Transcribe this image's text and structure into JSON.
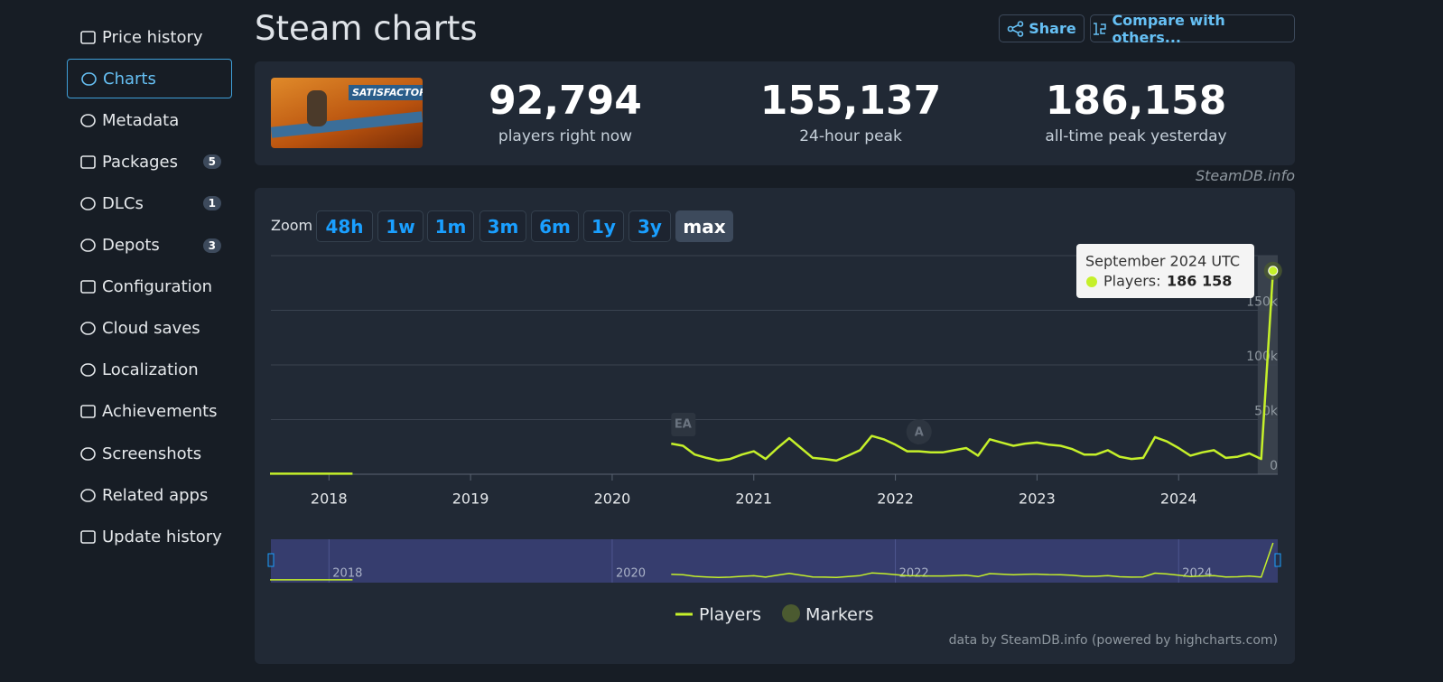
{
  "sidebar": [
    {
      "label": "Price history"
    },
    {
      "label": "Charts",
      "active": true
    },
    {
      "label": "Metadata"
    },
    {
      "label": "Packages",
      "badge": "5"
    },
    {
      "label": "DLCs",
      "badge": "1"
    },
    {
      "label": "Depots",
      "badge": "3"
    },
    {
      "label": "Configuration"
    },
    {
      "label": "Cloud saves"
    },
    {
      "label": "Localization"
    },
    {
      "label": "Achievements"
    },
    {
      "label": "Screenshots"
    },
    {
      "label": "Related apps"
    },
    {
      "label": "Update history"
    }
  ],
  "header": {
    "title": "Steam charts",
    "share": "Share",
    "compare": "Compare with others..."
  },
  "game": {
    "image_text": "SATISFACTORY"
  },
  "stats": [
    {
      "value": "92,794",
      "label": "players right now"
    },
    {
      "value": "155,137",
      "label": "24-hour peak"
    },
    {
      "value": "186,158",
      "label": "all-time peak yesterday"
    }
  ],
  "watermark": "SteamDB.info",
  "zoom": {
    "label": "Zoom",
    "buttons": [
      "48h",
      "1w",
      "1m",
      "3m",
      "6m",
      "1y",
      "3y",
      "max"
    ],
    "active": "max"
  },
  "chart_data": {
    "type": "line",
    "x": [
      "2017-08",
      "2017-09",
      "2017-10",
      "2017-11",
      "2017-12",
      "2018-01",
      "2018-02",
      "2018-03",
      "2018-04",
      "2020-06",
      "2020-07",
      "2020-08",
      "2020-09",
      "2020-10",
      "2020-11",
      "2020-12",
      "2021-01",
      "2021-02",
      "2021-03",
      "2021-04",
      "2021-05",
      "2021-06",
      "2021-07",
      "2021-08",
      "2021-09",
      "2021-10",
      "2021-11",
      "2021-12",
      "2022-01",
      "2022-02",
      "2022-03",
      "2022-04",
      "2022-05",
      "2022-06",
      "2022-07",
      "2022-08",
      "2022-09",
      "2022-10",
      "2022-11",
      "2022-12",
      "2023-01",
      "2023-02",
      "2023-03",
      "2023-04",
      "2023-05",
      "2023-06",
      "2023-07",
      "2023-08",
      "2023-09",
      "2023-10",
      "2023-11",
      "2023-12",
      "2024-01",
      "2024-02",
      "2024-03",
      "2024-04",
      "2024-05",
      "2024-06",
      "2024-07",
      "2024-08",
      "2024-09"
    ],
    "series": [
      {
        "name": "Players",
        "color": "#c5f02a",
        "values": [
          500,
          500,
          500,
          500,
          500,
          500,
          500,
          500,
          null,
          28000,
          26000,
          18000,
          15000,
          12500,
          14000,
          18000,
          21000,
          14000,
          24000,
          33000,
          24000,
          15000,
          14000,
          12500,
          17000,
          22000,
          35000,
          32000,
          27000,
          21000,
          21000,
          20000,
          20000,
          22000,
          24000,
          17000,
          32000,
          29000,
          26000,
          28000,
          29000,
          27000,
          26000,
          23000,
          18000,
          18000,
          22000,
          16000,
          14000,
          15000,
          34000,
          30000,
          24000,
          17000,
          20000,
          22000,
          15000,
          16000,
          19000,
          14000,
          186158
        ]
      }
    ],
    "markers": {
      "name": "Markers",
      "color": "#4b5a30",
      "items": [
        {
          "label": "EA",
          "x": "2020-07"
        },
        {
          "label": "A",
          "x": "2022-03"
        }
      ]
    },
    "xlim": [
      2017.59,
      2024.7
    ],
    "xticks": [
      2018,
      2019,
      2020,
      2021,
      2022,
      2023,
      2024
    ],
    "ylim": [
      0,
      200000
    ],
    "yticks": [
      0,
      {
        "value": 50000,
        "label": "50k"
      },
      {
        "value": 100000,
        "label": "100k"
      },
      {
        "value": 150000,
        "label": "150k"
      }
    ],
    "grid": true,
    "tooltip": {
      "title": "September 2024 UTC",
      "label": "Players:",
      "value": 186158,
      "value_label": "186 158",
      "index": 60
    },
    "navigator_ticks": [
      2018,
      2020,
      2022,
      2024
    ],
    "credits": "data by SteamDB.info (powered by highcharts.com)"
  }
}
